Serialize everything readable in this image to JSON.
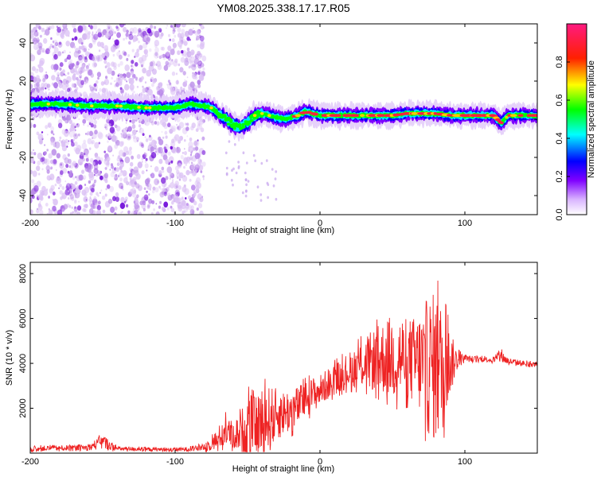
{
  "title": "YM08.2025.338.17.17.R05",
  "chart_data": [
    {
      "type": "heatmap",
      "name": "spectrogram",
      "xlabel": "Height of straight line (km)",
      "ylabel": "Frequency (Hz)",
      "xlim": [
        -200,
        150
      ],
      "ylim": [
        -50,
        50
      ],
      "xticks": [
        -200,
        -100,
        0,
        100
      ],
      "xtick_labels": [
        "-200",
        "-100",
        "0",
        "100"
      ],
      "yticks": [
        -40,
        -20,
        0,
        20,
        40
      ],
      "ytick_labels": [
        "-40",
        "-20",
        "0",
        "20",
        "40"
      ],
      "grid": false,
      "colorbar": {
        "label": "Normalized spectral amplitude",
        "range": [
          0,
          1
        ],
        "ticks": [
          0.0,
          0.2,
          0.4,
          0.6,
          0.8
        ],
        "tick_labels": [
          "0.0",
          "0.2",
          "0.4",
          "0.6",
          "0.8"
        ],
        "colormap": [
          "#ffffff",
          "#7f00ff",
          "#0000ff",
          "#00ffff",
          "#00ff00",
          "#ffff00",
          "#ff0000",
          "#ff0080"
        ]
      },
      "ridge": {
        "x": [
          -200,
          -180,
          -160,
          -140,
          -120,
          -100,
          -90,
          -80,
          -75,
          -70,
          -65,
          -60,
          -55,
          -50,
          -45,
          -40,
          -35,
          -30,
          -25,
          -20,
          -15,
          -10,
          -5,
          0,
          10,
          20,
          30,
          40,
          50,
          60,
          70,
          80,
          90,
          100,
          110,
          120,
          125,
          130,
          140,
          150
        ],
        "y": [
          8,
          8,
          7,
          7,
          6,
          6,
          8,
          7,
          6,
          3,
          0,
          -3,
          -4,
          -2,
          2,
          3,
          2,
          1,
          0,
          1,
          2,
          4,
          3,
          2,
          2,
          2,
          2,
          2,
          2,
          3,
          3,
          3,
          2,
          2,
          2,
          2,
          -2,
          2,
          2,
          2
        ]
      },
      "noise_band_x": [
        -200,
        -80
      ],
      "description_units": "km, Hz"
    },
    {
      "type": "line",
      "name": "snr",
      "xlabel": "Height of straight line (km)",
      "ylabel": "SNR (10 * v/v)",
      "xlim": [
        -200,
        150
      ],
      "ylim": [
        0,
        8500
      ],
      "xticks": [
        -200,
        -100,
        0,
        100
      ],
      "xtick_labels": [
        "-200",
        "-100",
        "0",
        "100"
      ],
      "yticks": [
        2000,
        4000,
        6000,
        8000
      ],
      "ytick_labels": [
        "2000",
        "4000",
        "6000",
        "8000"
      ],
      "grid": false,
      "color": "#ee2222",
      "series": [
        {
          "name": "SNR envelope",
          "x": [
            -200,
            -160,
            -150,
            -140,
            -100,
            -85,
            -75,
            -70,
            -65,
            -60,
            -55,
            -50,
            -45,
            -40,
            -35,
            -30,
            -25,
            -20,
            -15,
            -10,
            -5,
            0,
            10,
            20,
            30,
            40,
            50,
            55,
            60,
            65,
            70,
            75,
            80,
            85,
            90,
            95,
            100,
            110,
            120,
            125,
            130,
            140,
            150
          ],
          "mid": [
            200,
            250,
            500,
            200,
            150,
            200,
            400,
            700,
            1000,
            800,
            900,
            1200,
            1300,
            1400,
            1500,
            1700,
            1800,
            1900,
            2100,
            2400,
            2600,
            2800,
            3300,
            3700,
            4000,
            4200,
            4300,
            4300,
            4200,
            4100,
            4000,
            3900,
            3800,
            3800,
            4000,
            4150,
            4200,
            4200,
            4150,
            4300,
            4100,
            4000,
            3950
          ],
          "amp": [
            120,
            120,
            350,
            100,
            80,
            120,
            300,
            500,
            700,
            600,
            900,
            1500,
            1200,
            1600,
            1500,
            1200,
            1000,
            1000,
            900,
            800,
            800,
            700,
            700,
            800,
            1100,
            1500,
            1900,
            2000,
            1800,
            2000,
            2400,
            3200,
            3400,
            2800,
            1400,
            400,
            150,
            120,
            120,
            300,
            150,
            120,
            100
          ]
        }
      ]
    }
  ]
}
